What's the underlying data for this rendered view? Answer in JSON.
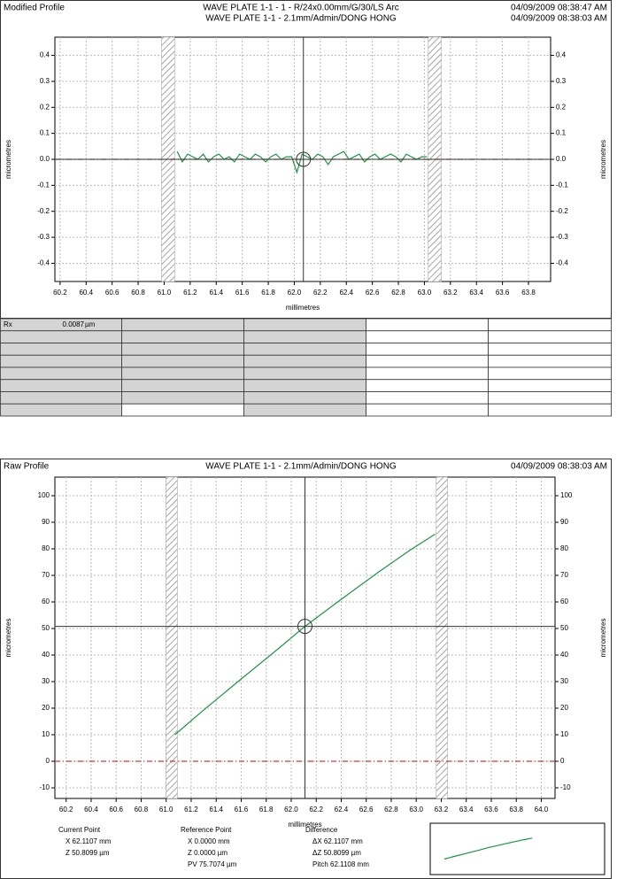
{
  "chart_data": [
    {
      "type": "line",
      "title": "Modified Profile",
      "headers": [
        "WAVE PLATE 1-1 - 1 - R/24x0.00mm/G/30/LS Arc",
        "WAVE PLATE 1-1 - 2.1mm/Admin/DONG HONG"
      ],
      "timestamps": [
        "04/09/2009 08:38:47 AM",
        "04/09/2009 08:38:03 AM"
      ],
      "y_label": "micrometres",
      "x_label": "millimetres",
      "xlim": [
        60.16,
        63.97
      ],
      "ylim": [
        -0.47,
        0.47
      ],
      "xticks": [
        60.2,
        60.4,
        60.6,
        60.8,
        {
          "value": 61,
          "label": "61.0"
        },
        61.2,
        61.4,
        61.6,
        61.8,
        {
          "value": 62,
          "label": "62.0"
        },
        62.2,
        62.4,
        62.6,
        62.8,
        {
          "value": 63,
          "label": "63.0"
        },
        63.2,
        63.4,
        63.6,
        63.8
      ],
      "yticks": [
        0.4,
        0.3,
        0.2,
        0.1,
        {
          "value": 0,
          "label": "0.0"
        },
        -0.1,
        -0.2,
        -0.3,
        -0.4
      ],
      "grid": true,
      "reference_line": 0,
      "cursor": {
        "x": 62.07,
        "y": 0
      },
      "exclusion_bands": [
        [
          60.98,
          61.08
        ],
        [
          63.03,
          63.13
        ]
      ],
      "series": [
        {
          "color": "#1a9641",
          "x": [
            61.1,
            61.14,
            61.18,
            61.22,
            61.26,
            61.3,
            61.34,
            61.38,
            61.42,
            61.46,
            61.5,
            61.54,
            61.58,
            61.62,
            61.66,
            61.7,
            61.74,
            61.78,
            61.82,
            61.86,
            61.9,
            61.94,
            61.98,
            62.02,
            62.06,
            62.1,
            62.14,
            62.18,
            62.22,
            62.26,
            62.3,
            62.34,
            62.38,
            62.42,
            62.46,
            62.5,
            62.54,
            62.58,
            62.62,
            62.66,
            62.7,
            62.74,
            62.78,
            62.82,
            62.86,
            62.9,
            62.94,
            62.98,
            63.02
          ],
          "values": [
            0.03,
            -0.01,
            0.02,
            0.01,
            0.0,
            0.02,
            -0.01,
            0.01,
            0.02,
            0.0,
            0.01,
            -0.01,
            0.02,
            0.01,
            0.0,
            0.02,
            0.01,
            -0.01,
            0.01,
            0.02,
            0.0,
            0.01,
            0.01,
            -0.05,
            0.02,
            0.01,
            0.0,
            0.02,
            0.01,
            -0.02,
            0.01,
            0.02,
            0.03,
            0.0,
            0.01,
            0.02,
            -0.01,
            0.01,
            0.02,
            0.0,
            0.01,
            0.02,
            0.01,
            -0.01,
            0.02,
            0.01,
            0.0,
            0.01,
            0.01
          ]
        }
      ]
    },
    {
      "type": "line",
      "title": "Raw Profile",
      "headers": [
        "WAVE PLATE 1-1 - 2.1mm/Admin/DONG HONG"
      ],
      "timestamps": [
        "04/09/2009 08:38:03 AM"
      ],
      "y_label": "micrometres",
      "x_label": "millimetres",
      "xlim": [
        60.11,
        64.11
      ],
      "ylim": [
        -14,
        107
      ],
      "xticks": [
        60.2,
        60.4,
        60.6,
        60.8,
        {
          "value": 61,
          "label": "61.0"
        },
        61.2,
        61.4,
        61.6,
        61.8,
        {
          "value": 62,
          "label": "62.0"
        },
        62.2,
        62.4,
        62.6,
        62.8,
        {
          "value": 63,
          "label": "63.0"
        },
        63.2,
        63.4,
        63.6,
        63.8,
        {
          "value": 64,
          "label": "64.0"
        }
      ],
      "yticks": [
        100,
        90,
        80,
        70,
        60,
        50,
        40,
        30,
        20,
        10,
        0,
        -10
      ],
      "grid": true,
      "reference_line": 0,
      "cursor": {
        "x": 62.11,
        "y": 50.8
      },
      "exclusion_bands": [
        [
          61.0,
          61.09
        ],
        [
          63.16,
          63.25
        ]
      ],
      "series": [
        {
          "color": "#1a9641",
          "x": [
            61.07,
            61.3,
            61.6,
            61.9,
            62.11,
            62.4,
            62.7,
            62.95,
            63.15
          ],
          "values": [
            10,
            19.3,
            31,
            42.5,
            50.8,
            61,
            71.3,
            79.5,
            85.5
          ]
        }
      ]
    }
  ],
  "table": {
    "rows": [
      [
        "Rx",
        "0.0087",
        "µm"
      ]
    ]
  },
  "readout": [
    {
      "title": "Current Point",
      "lines": [
        "X 62.1107 mm",
        "Z 50.8099 µm"
      ]
    },
    {
      "title": "Reference Point",
      "lines": [
        "X 0.0000 mm",
        "Z 0.0000 µm",
        "PV 75.7074 µm"
      ]
    },
    {
      "title": "Difference",
      "lines": [
        "ΔX 62.1107 mm",
        "ΔZ 50.8099 µm",
        "Pitch 62.1108 mm"
      ]
    }
  ]
}
